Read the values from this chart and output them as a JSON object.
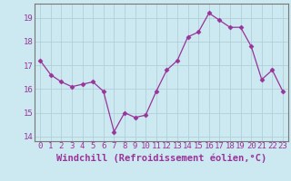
{
  "x": [
    0,
    1,
    2,
    3,
    4,
    5,
    6,
    7,
    8,
    9,
    10,
    11,
    12,
    13,
    14,
    15,
    16,
    17,
    18,
    19,
    20,
    21,
    22,
    23
  ],
  "y": [
    17.2,
    16.6,
    16.3,
    16.1,
    16.2,
    16.3,
    15.9,
    14.2,
    15.0,
    14.8,
    14.9,
    15.9,
    16.8,
    17.2,
    18.2,
    18.4,
    19.2,
    18.9,
    18.6,
    18.6,
    17.8,
    16.4,
    16.8,
    15.9
  ],
  "line_color": "#993399",
  "marker": "D",
  "marker_size": 2.5,
  "bg_color": "#cce8f0",
  "grid_color": "#b0cfd8",
  "xlabel": "Windchill (Refroidissement éolien,°C)",
  "ylabel": "",
  "xlim": [
    -0.5,
    23.5
  ],
  "ylim": [
    13.8,
    19.6
  ],
  "yticks": [
    14,
    15,
    16,
    17,
    18,
    19
  ],
  "xticks": [
    0,
    1,
    2,
    3,
    4,
    5,
    6,
    7,
    8,
    9,
    10,
    11,
    12,
    13,
    14,
    15,
    16,
    17,
    18,
    19,
    20,
    21,
    22,
    23
  ],
  "tick_color": "#993399",
  "label_color": "#993399",
  "spine_color": "#777777",
  "font_size": 6.5,
  "xlabel_font_size": 7.5
}
